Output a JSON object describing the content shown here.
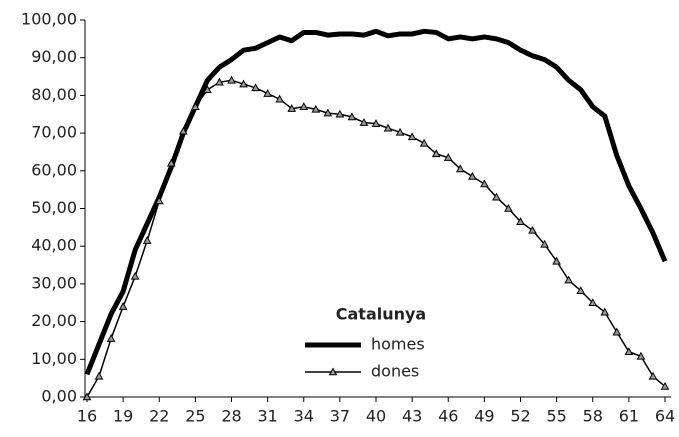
{
  "chart_data": {
    "type": "line",
    "legend_title": "Catalunya",
    "legend": "lower center",
    "x": [
      16,
      17,
      18,
      19,
      20,
      21,
      22,
      23,
      24,
      25,
      26,
      27,
      28,
      29,
      30,
      31,
      32,
      33,
      34,
      35,
      36,
      37,
      38,
      39,
      40,
      41,
      42,
      43,
      44,
      45,
      46,
      47,
      48,
      49,
      50,
      51,
      52,
      53,
      54,
      55,
      56,
      57,
      58,
      59,
      60,
      61,
      62,
      63,
      64
    ],
    "xlim": [
      16,
      64
    ],
    "xticks": [
      16,
      19,
      22,
      25,
      28,
      31,
      34,
      37,
      40,
      43,
      46,
      49,
      52,
      55,
      58,
      61,
      64
    ],
    "ylim": [
      0,
      100
    ],
    "yticks": [
      {
        "value": 0,
        "label": "0,00"
      },
      {
        "value": 10,
        "label": "10,00"
      },
      {
        "value": 20,
        "label": "20,00"
      },
      {
        "value": 30,
        "label": "30,00"
      },
      {
        "value": 40,
        "label": "40,00"
      },
      {
        "value": 50,
        "label": "50,00"
      },
      {
        "value": 60,
        "label": "60,00"
      },
      {
        "value": 70,
        "label": "70,00"
      },
      {
        "value": 80,
        "label": "80,00"
      },
      {
        "value": 90,
        "label": "90,00"
      },
      {
        "value": 100,
        "label": "100,00"
      }
    ],
    "series": [
      {
        "name": "homes",
        "color": "#000000",
        "line_width": 5,
        "marker": null,
        "values": [
          6,
          14,
          22,
          28,
          39,
          46,
          53,
          61,
          70,
          77,
          84,
          87.5,
          89.5,
          92,
          92.5,
          94,
          95.5,
          94.5,
          96.7,
          96.7,
          96,
          96.3,
          96.3,
          96,
          97,
          95.8,
          96.3,
          96.3,
          97,
          96.7,
          95,
          95.5,
          95,
          95.5,
          95,
          94,
          92,
          90.5,
          89.5,
          87.5,
          84,
          81.5,
          77,
          74.5,
          64,
          56,
          50,
          43.5,
          36
        ]
      },
      {
        "name": "dones",
        "color": "#000000",
        "line_width": 1.5,
        "marker": "triangle",
        "values": [
          0,
          5.5,
          15.5,
          24,
          32,
          41.5,
          52,
          62,
          70.5,
          77,
          81.5,
          83.5,
          84,
          83,
          82,
          80.5,
          79,
          76.5,
          77,
          76.3,
          75.3,
          75,
          74.3,
          72.8,
          72.5,
          71.3,
          70.2,
          69,
          67.3,
          64.5,
          63.5,
          60.5,
          58.5,
          56.5,
          53,
          50,
          46.5,
          44.2,
          40.5,
          36,
          31,
          28.2,
          25,
          22.5,
          17.2,
          12,
          10.8,
          5.5,
          2.8
        ]
      }
    ]
  }
}
